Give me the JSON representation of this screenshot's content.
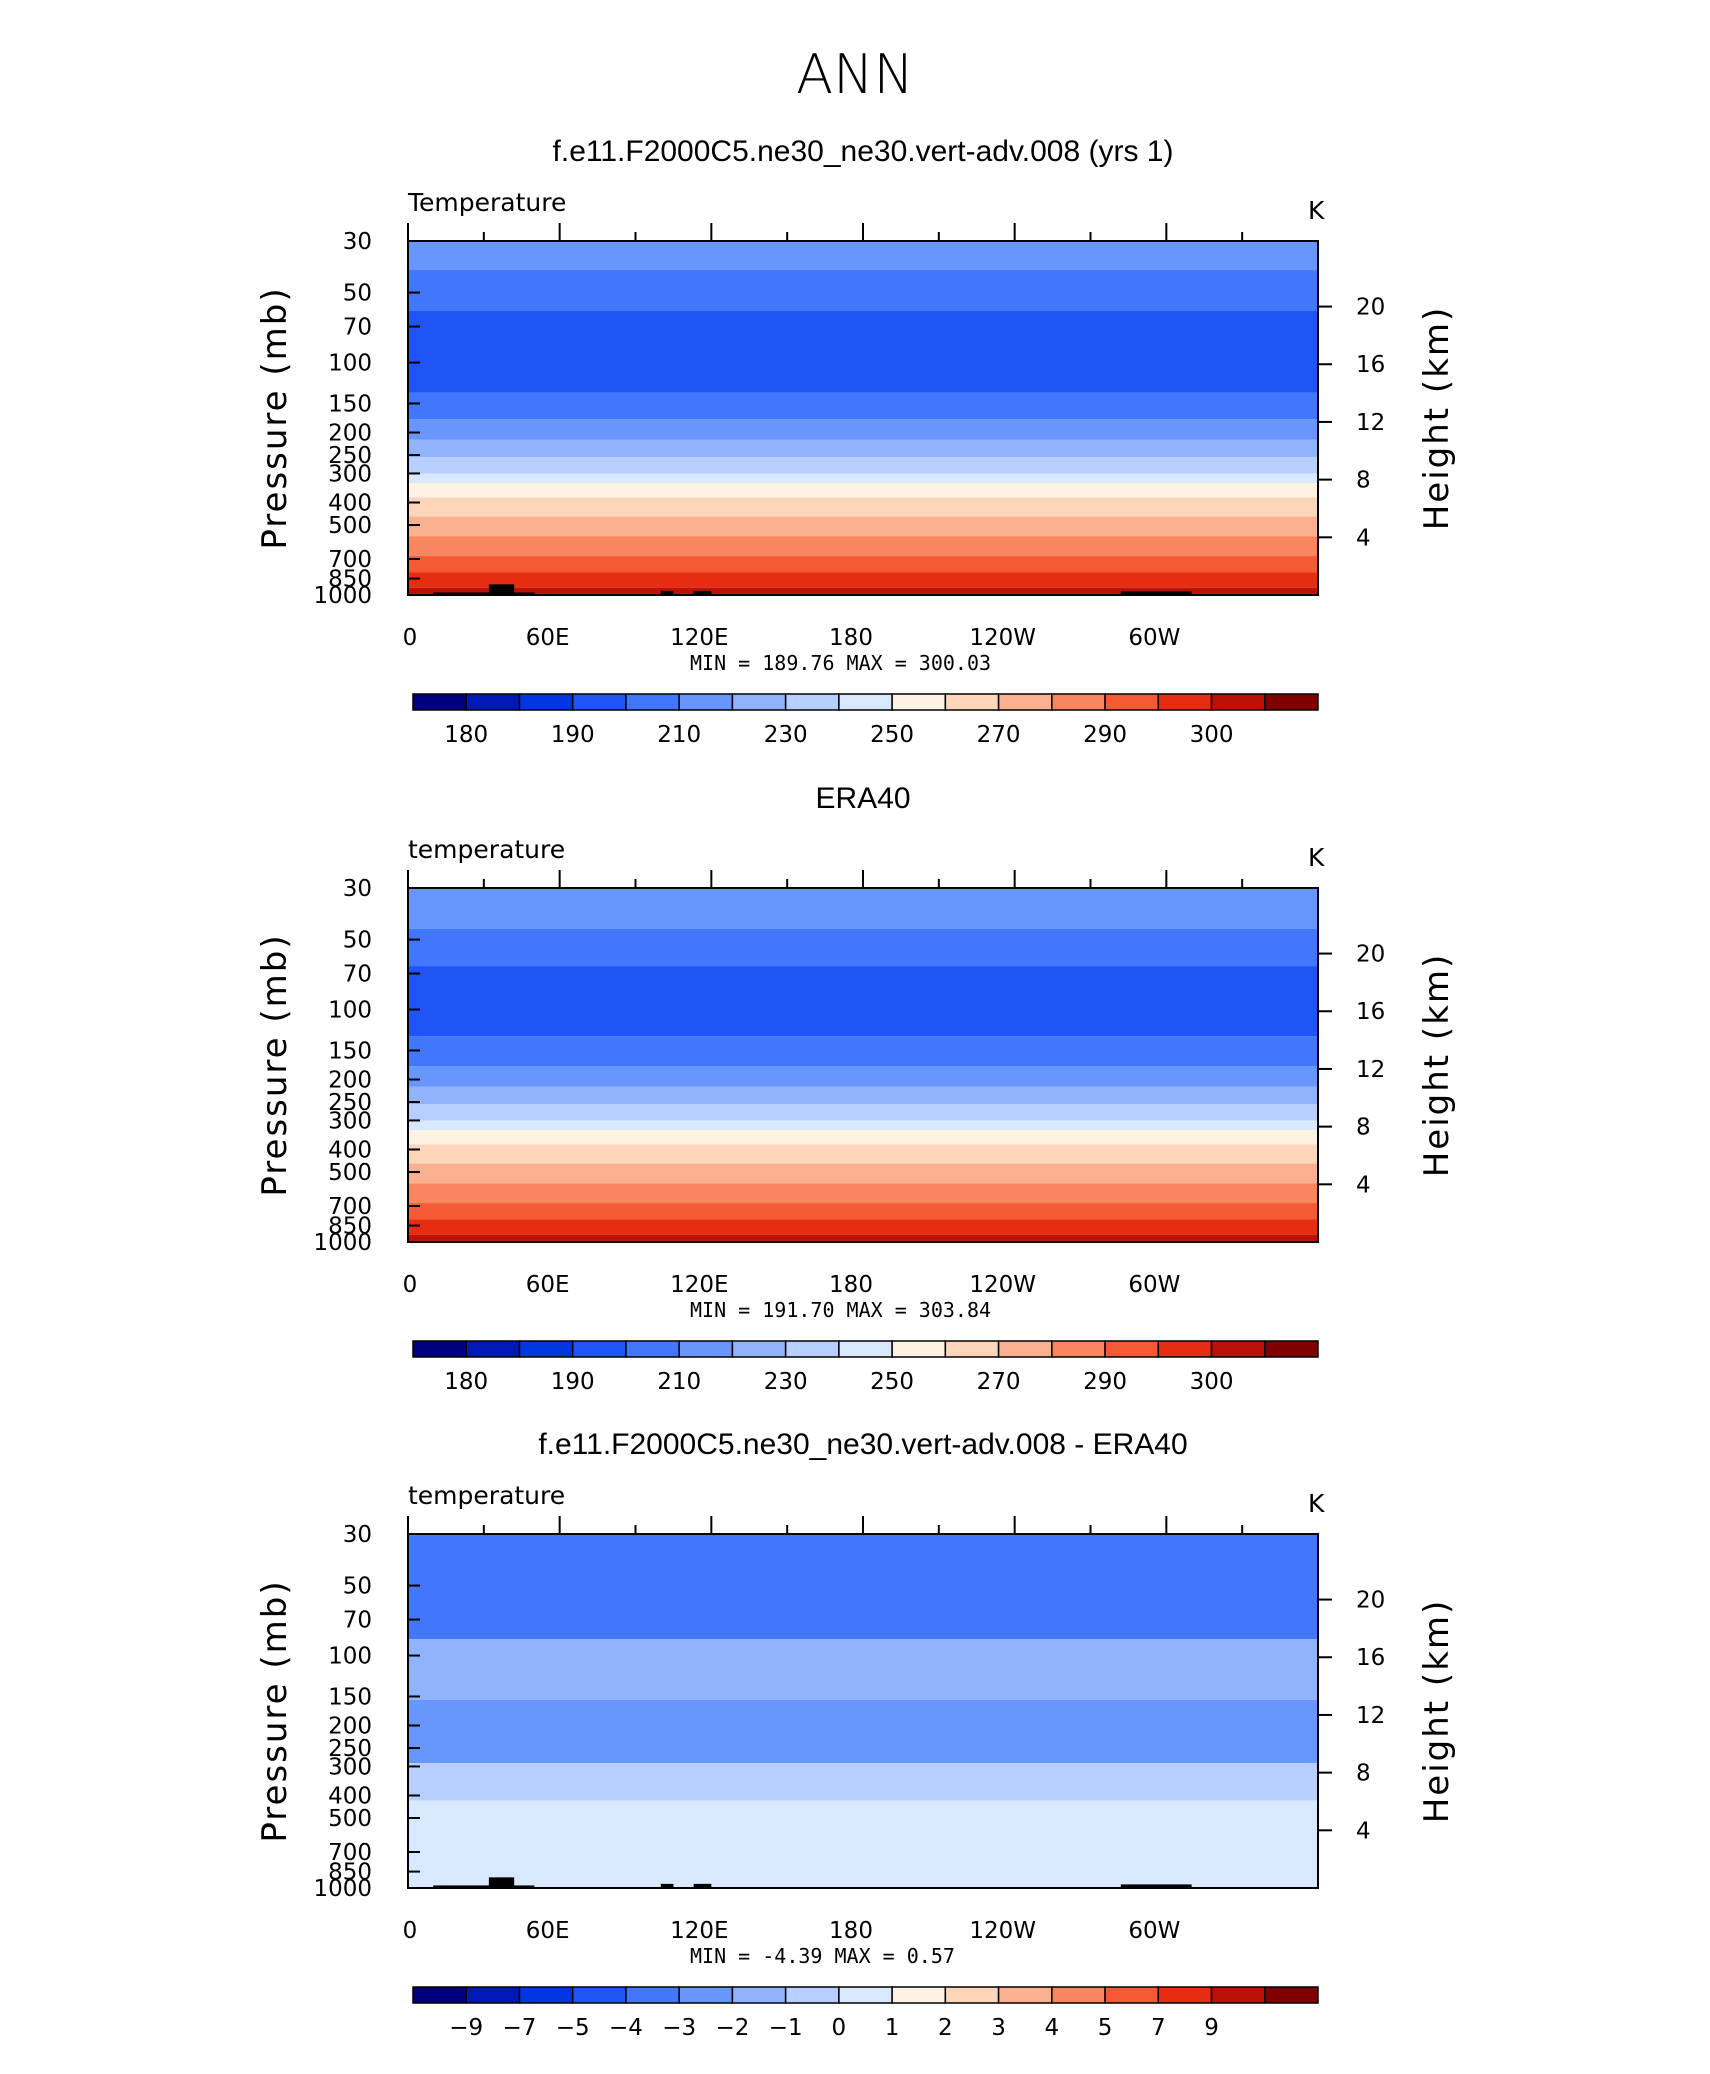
{
  "title": "ANN",
  "colors": {
    "abs_palette": [
      "#00007f",
      "#0019b5",
      "#0036e0",
      "#1f55f7",
      "#4277fb",
      "#6896fc",
      "#8fb3fd",
      "#b6cffe",
      "#d8e8fe",
      "#fef2e3",
      "#fdd5bb",
      "#fbb08f",
      "#f88760",
      "#f45a33",
      "#e62d12",
      "#bb1106",
      "#7f0000"
    ],
    "diff_palette": [
      "#00007f",
      "#0019b5",
      "#0036e0",
      "#1f55f7",
      "#4277fb",
      "#6896fc",
      "#8fb3fd",
      "#b6cffe",
      "#d8e8fe",
      "#fef2e3",
      "#fdd5bb",
      "#fbb08f",
      "#f88760",
      "#f45a33",
      "#e62d12",
      "#bb1106",
      "#7f0000"
    ],
    "terrain": "#000000"
  },
  "chart_data": [
    {
      "type": "heatmap",
      "title": "f.e11.F2000C5.ne30_ne30.vert-adv.008 (yrs 1)",
      "left_label": "Temperature",
      "right_label": "K",
      "ylabel": "Pressure (mb)",
      "y2label": "Height (km)",
      "xticks": [
        "0",
        "60E",
        "120E",
        "180",
        "120W",
        "60W"
      ],
      "yticks": [
        30,
        50,
        70,
        100,
        150,
        200,
        250,
        300,
        400,
        500,
        700,
        850,
        1000
      ],
      "y2ticks": [
        20,
        16,
        12,
        8,
        4
      ],
      "ylim": [
        1000,
        30
      ],
      "yscale": "log",
      "stats": {
        "min_label": "MIN",
        "min": "189.76",
        "max_label": "MAX",
        "max": "300.03"
      },
      "colorbar_labels": [
        "180",
        "190",
        "210",
        "230",
        "250",
        "270",
        "290",
        "300"
      ],
      "levels": [
        {
          "top": 30,
          "bottom": 40,
          "color_index": 5
        },
        {
          "top": 40,
          "bottom": 60,
          "color_index": 4
        },
        {
          "top": 60,
          "bottom": 135,
          "color_index": 3
        },
        {
          "top": 135,
          "bottom": 175,
          "color_index": 4
        },
        {
          "top": 175,
          "bottom": 215,
          "color_index": 5
        },
        {
          "top": 215,
          "bottom": 255,
          "color_index": 6
        },
        {
          "top": 255,
          "bottom": 300,
          "color_index": 7
        },
        {
          "top": 300,
          "bottom": 330,
          "color_index": 8
        },
        {
          "top": 330,
          "bottom": 380,
          "color_index": 9
        },
        {
          "top": 380,
          "bottom": 460,
          "color_index": 10
        },
        {
          "top": 460,
          "bottom": 560,
          "color_index": 11
        },
        {
          "top": 560,
          "bottom": 680,
          "color_index": 12
        },
        {
          "top": 680,
          "bottom": 800,
          "color_index": 13
        },
        {
          "top": 800,
          "bottom": 930,
          "color_index": 14
        },
        {
          "top": 930,
          "bottom": 1000,
          "color_index": 15
        }
      ],
      "terrain": [
        [
          10,
          1000,
          940
        ],
        [
          32,
          1000,
          880
        ],
        [
          45,
          1000,
          940
        ],
        [
          100,
          1000,
          930
        ],
        [
          113,
          1000,
          930
        ],
        [
          138,
          1000,
          1000
        ],
        [
          280,
          1000,
          940
        ],
        [
          310,
          1000,
          940
        ],
        [
          326,
          1000,
          1000
        ]
      ]
    },
    {
      "type": "heatmap",
      "title": "ERA40",
      "left_label": "temperature",
      "right_label": "K",
      "ylabel": "Pressure (mb)",
      "y2label": "Height (km)",
      "xticks": [
        "0",
        "60E",
        "120E",
        "180",
        "120W",
        "60W"
      ],
      "yticks": [
        30,
        50,
        70,
        100,
        150,
        200,
        250,
        300,
        400,
        500,
        700,
        850,
        1000
      ],
      "y2ticks": [
        20,
        16,
        12,
        8,
        4
      ],
      "ylim": [
        1000,
        30
      ],
      "yscale": "log",
      "stats": {
        "min_label": "MIN",
        "min": "191.70",
        "max_label": "MAX",
        "max": "303.84"
      },
      "colorbar_labels": [
        "180",
        "190",
        "210",
        "230",
        "250",
        "270",
        "290",
        "300"
      ],
      "levels": [
        {
          "top": 30,
          "bottom": 45,
          "color_index": 5
        },
        {
          "top": 45,
          "bottom": 65,
          "color_index": 4
        },
        {
          "top": 65,
          "bottom": 130,
          "color_index": 3
        },
        {
          "top": 130,
          "bottom": 175,
          "color_index": 4
        },
        {
          "top": 175,
          "bottom": 215,
          "color_index": 5
        },
        {
          "top": 215,
          "bottom": 255,
          "color_index": 6
        },
        {
          "top": 255,
          "bottom": 300,
          "color_index": 7
        },
        {
          "top": 300,
          "bottom": 330,
          "color_index": 8
        },
        {
          "top": 330,
          "bottom": 380,
          "color_index": 9
        },
        {
          "top": 380,
          "bottom": 460,
          "color_index": 10
        },
        {
          "top": 460,
          "bottom": 560,
          "color_index": 11
        },
        {
          "top": 560,
          "bottom": 680,
          "color_index": 12
        },
        {
          "top": 680,
          "bottom": 800,
          "color_index": 13
        },
        {
          "top": 800,
          "bottom": 930,
          "color_index": 14
        },
        {
          "top": 930,
          "bottom": 1000,
          "color_index": 15
        }
      ],
      "terrain": []
    },
    {
      "type": "heatmap",
      "title": "f.e11.F2000C5.ne30_ne30.vert-adv.008 - ERA40",
      "left_label": "temperature",
      "right_label": "K",
      "ylabel": "Pressure (mb)",
      "y2label": "Height (km)",
      "xticks": [
        "0",
        "60E",
        "120E",
        "180",
        "120W",
        "60W"
      ],
      "yticks": [
        30,
        50,
        70,
        100,
        150,
        200,
        250,
        300,
        400,
        500,
        700,
        850,
        1000
      ],
      "y2ticks": [
        20,
        16,
        12,
        8,
        4
      ],
      "ylim": [
        1000,
        30
      ],
      "yscale": "log",
      "stats": {
        "min_label": "MIN",
        "min": "-4.39",
        "max_label": "MAX",
        "max": "0.57"
      },
      "colorbar_labels": [
        "−9",
        "−7",
        "−5",
        "−4",
        "−3",
        "−2",
        "−1",
        "0",
        "1",
        "2",
        "3",
        "4",
        "5",
        "7",
        "9"
      ],
      "levels": [
        {
          "top": 30,
          "bottom": 85,
          "color_index": 4
        },
        {
          "top": 85,
          "bottom": 155,
          "color_index": 6
        },
        {
          "top": 155,
          "bottom": 290,
          "color_index": 5
        },
        {
          "top": 290,
          "bottom": 420,
          "color_index": 7
        },
        {
          "top": 420,
          "bottom": 1000,
          "color_index": 8
        }
      ],
      "terrain": [
        [
          10,
          1000,
          940
        ],
        [
          32,
          1000,
          880
        ],
        [
          45,
          1000,
          940
        ],
        [
          100,
          1000,
          930
        ],
        [
          113,
          1000,
          930
        ],
        [
          138,
          1000,
          1000
        ],
        [
          280,
          1000,
          940
        ],
        [
          310,
          1000,
          940
        ],
        [
          326,
          1000,
          1000
        ]
      ]
    }
  ]
}
